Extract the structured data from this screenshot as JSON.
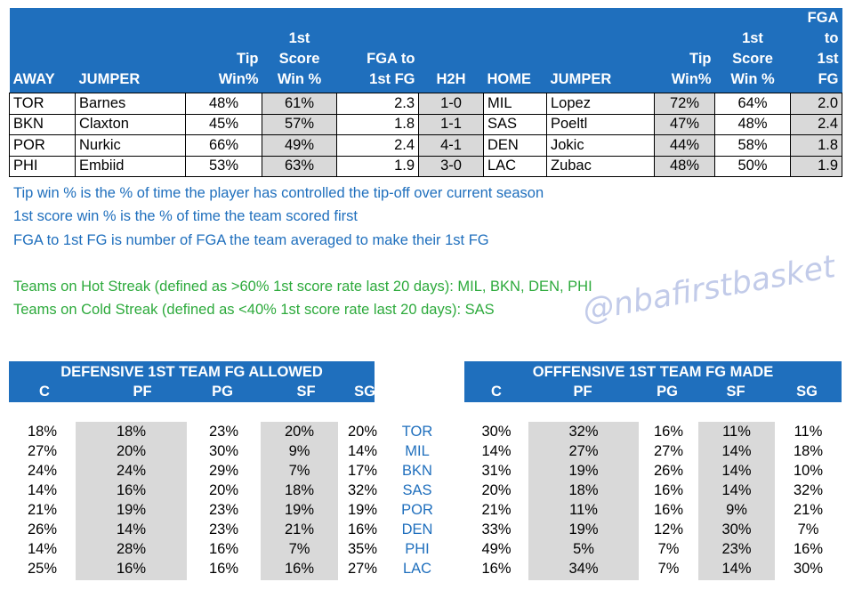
{
  "matchups": {
    "headers": {
      "away": "AWAY",
      "away_jumper": "JUMPER",
      "away_tip": [
        "Tip",
        "Win%"
      ],
      "away_score": [
        "1st",
        "Score",
        "Win %"
      ],
      "away_fga": [
        "FGA to",
        "1st FG"
      ],
      "h2h": "H2H",
      "home": "HOME",
      "home_jumper": "JUMPER",
      "home_tip": [
        "Tip",
        "Win%"
      ],
      "home_score": [
        "1st",
        "Score",
        "Win %"
      ],
      "home_fga": [
        "FGA to",
        "1st FG"
      ]
    },
    "rows": [
      {
        "away": "TOR",
        "away_jumper": "Barnes",
        "away_tip": "48%",
        "away_score": "61%",
        "away_fga": "2.3",
        "h2h": "1-0",
        "home": "MIL",
        "home_jumper": "Lopez",
        "home_tip": "72%",
        "home_score": "64%",
        "home_fga": "2.0"
      },
      {
        "away": "BKN",
        "away_jumper": "Claxton",
        "away_tip": "45%",
        "away_score": "57%",
        "away_fga": "1.8",
        "h2h": "1-1",
        "home": "SAS",
        "home_jumper": "Poeltl",
        "home_tip": "47%",
        "home_score": "48%",
        "home_fga": "2.4"
      },
      {
        "away": "POR",
        "away_jumper": "Nurkic",
        "away_tip": "66%",
        "away_score": "49%",
        "away_fga": "2.4",
        "h2h": "4-1",
        "home": "DEN",
        "home_jumper": "Jokic",
        "home_tip": "44%",
        "home_score": "58%",
        "home_fga": "1.8"
      },
      {
        "away": "PHI",
        "away_jumper": "Embiid",
        "away_tip": "53%",
        "away_score": "63%",
        "away_fga": "1.9",
        "h2h": "3-0",
        "home": "LAC",
        "home_jumper": "Zubac",
        "home_tip": "48%",
        "home_score": "50%",
        "home_fga": "1.9"
      }
    ]
  },
  "notes": {
    "tip_def": "Tip win % is the % of time the player has controlled the tip-off over current season",
    "score_def": "1st score win % is the % of time the team scored first",
    "fga_def": "FGA to 1st FG is number of FGA the team averaged to make their 1st FG",
    "hot": "Teams on Hot Streak (defined as >60% 1st score rate last 20 days): MIL, BKN, DEN, PHI",
    "cold": "Teams on Cold Streak (defined as <40% 1st score rate last 20 days): SAS"
  },
  "watermark": "@nbafirstbasket",
  "defensive": {
    "title": "DEFENSIVE 1ST TEAM FG ALLOWED",
    "columns": [
      "C",
      "PF",
      "PG",
      "SF",
      "SG"
    ]
  },
  "offensive": {
    "title": "OFFFENSIVE 1ST TEAM FG MADE",
    "columns": [
      "C",
      "PF",
      "PG",
      "SF",
      "SG"
    ]
  },
  "positions": [
    {
      "team": "TOR",
      "def": [
        "18%",
        "18%",
        "23%",
        "20%",
        "20%"
      ],
      "off": [
        "30%",
        "32%",
        "16%",
        "11%",
        "11%"
      ]
    },
    {
      "team": "MIL",
      "def": [
        "27%",
        "20%",
        "30%",
        "9%",
        "14%"
      ],
      "off": [
        "14%",
        "27%",
        "27%",
        "14%",
        "18%"
      ]
    },
    {
      "team": "BKN",
      "def": [
        "24%",
        "24%",
        "29%",
        "7%",
        "17%"
      ],
      "off": [
        "31%",
        "19%",
        "26%",
        "14%",
        "10%"
      ]
    },
    {
      "team": "SAS",
      "def": [
        "14%",
        "16%",
        "20%",
        "18%",
        "32%"
      ],
      "off": [
        "20%",
        "18%",
        "16%",
        "14%",
        "32%"
      ]
    },
    {
      "team": "POR",
      "def": [
        "21%",
        "19%",
        "23%",
        "19%",
        "19%"
      ],
      "off": [
        "21%",
        "11%",
        "16%",
        "9%",
        "21%"
      ]
    },
    {
      "team": "DEN",
      "def": [
        "26%",
        "14%",
        "23%",
        "21%",
        "16%"
      ],
      "off": [
        "33%",
        "19%",
        "12%",
        "30%",
        "7%"
      ]
    },
    {
      "team": "PHI",
      "def": [
        "14%",
        "28%",
        "16%",
        "7%",
        "35%"
      ],
      "off": [
        "49%",
        "5%",
        "7%",
        "23%",
        "16%"
      ]
    },
    {
      "team": "LAC",
      "def": [
        "25%",
        "16%",
        "16%",
        "16%",
        "27%"
      ],
      "off": [
        "16%",
        "34%",
        "7%",
        "14%",
        "30%"
      ]
    }
  ],
  "colors": {
    "header_blue": "#1f6fbd",
    "shade_gray": "#d9d9d9",
    "note_blue": "#1f6fbd",
    "note_green": "#2daa3c",
    "watermark": "#b8c3e6"
  }
}
